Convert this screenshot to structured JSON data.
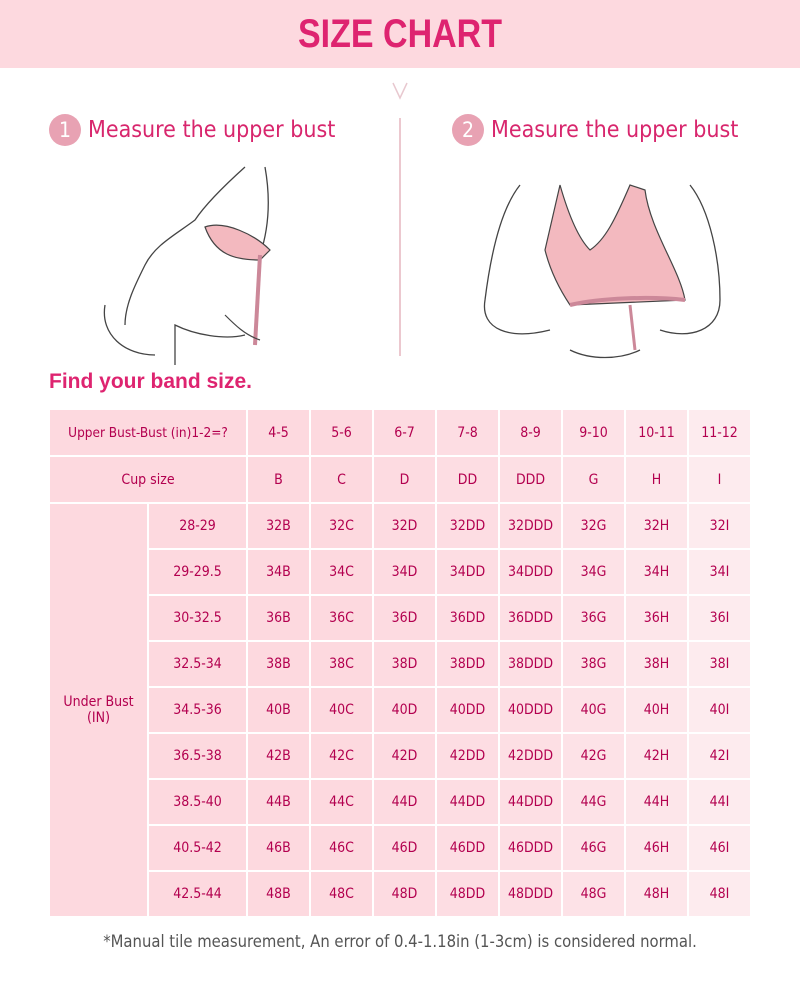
{
  "title": "SIZE CHART",
  "steps": [
    {
      "num": "1",
      "label": "Measure the upper bust"
    },
    {
      "num": "2",
      "label": "Measure the upper bust"
    }
  ],
  "section_title": "Find your band size.",
  "table": {
    "header_label": "Upper Bust-Bust (in)1-2=?",
    "differences": [
      "4-5",
      "5-6",
      "6-7",
      "7-8",
      "8-9",
      "9-10",
      "10-11",
      "11-12"
    ],
    "cup_label": "Cup size",
    "cups": [
      "B",
      "C",
      "D",
      "DD",
      "DDD",
      "G",
      "H",
      "I"
    ],
    "row_group_label": "Under Bust (IN)",
    "rows": [
      {
        "under": "28-29",
        "sizes": [
          "32B",
          "32C",
          "32D",
          "32DD",
          "32DDD",
          "32G",
          "32H",
          "32I"
        ]
      },
      {
        "under": "29-29.5",
        "sizes": [
          "34B",
          "34C",
          "34D",
          "34DD",
          "34DDD",
          "34G",
          "34H",
          "34I"
        ]
      },
      {
        "under": "30-32.5",
        "sizes": [
          "36B",
          "36C",
          "36D",
          "36DD",
          "36DDD",
          "36G",
          "36H",
          "36I"
        ]
      },
      {
        "under": "32.5-34",
        "sizes": [
          "38B",
          "38C",
          "38D",
          "38DD",
          "38DDD",
          "38G",
          "38H",
          "38I"
        ]
      },
      {
        "under": "34.5-36",
        "sizes": [
          "40B",
          "40C",
          "40D",
          "40DD",
          "40DDD",
          "40G",
          "40H",
          "40I"
        ]
      },
      {
        "under": "36.5-38",
        "sizes": [
          "42B",
          "42C",
          "42D",
          "42DD",
          "42DDD",
          "42G",
          "42H",
          "42I"
        ]
      },
      {
        "under": "38.5-40",
        "sizes": [
          "44B",
          "44C",
          "44D",
          "44DD",
          "44DDD",
          "44G",
          "44H",
          "44I"
        ]
      },
      {
        "under": "40.5-42",
        "sizes": [
          "46B",
          "46C",
          "46D",
          "46DD",
          "46DDD",
          "46G",
          "46H",
          "46I"
        ]
      },
      {
        "under": "42.5-44",
        "sizes": [
          "48B",
          "48C",
          "48D",
          "48DD",
          "48DDD",
          "48G",
          "48H",
          "48I"
        ]
      }
    ]
  },
  "note": "*Manual tile measurement, An error of 0.4-1.18in (1-3cm) is considered normal.",
  "colors": {
    "banner": "#fdd9df",
    "title": "#de2470",
    "text": "#b3004f",
    "badge": "#e8a2b3",
    "bra": "#f3b9bf"
  }
}
